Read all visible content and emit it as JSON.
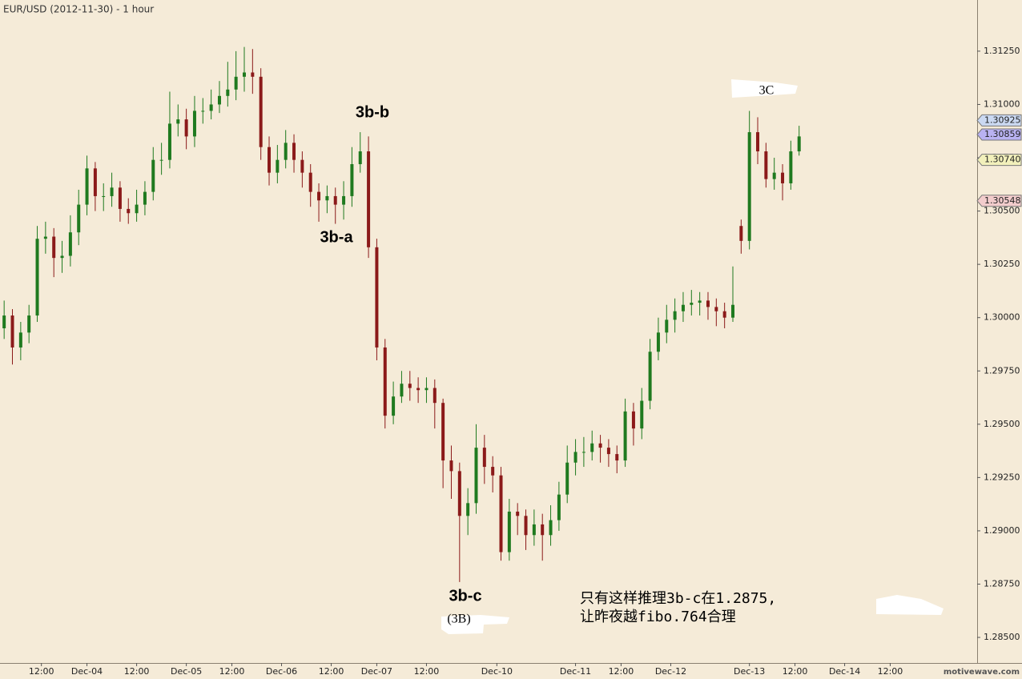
{
  "chart_data": {
    "type": "candlestick",
    "title": "EUR/USD (2012-11-30) - 1 hour",
    "watermark": "motivewave.com",
    "up_color": "#1f7a1f",
    "down_color": "#8b1a1a",
    "x": [
      1,
      3,
      5,
      7,
      9,
      11,
      13,
      15,
      17,
      19,
      21,
      23,
      25,
      27,
      29,
      31,
      33,
      35,
      37,
      39,
      41,
      43,
      45,
      47,
      49,
      51,
      53,
      55,
      57,
      59,
      61,
      63,
      65,
      67,
      69,
      71,
      73,
      75,
      77,
      79,
      81,
      83,
      85,
      87,
      89,
      91,
      93,
      95,
      97,
      99,
      101,
      103,
      105,
      107,
      109,
      111,
      113,
      115,
      117,
      119,
      121,
      123,
      125,
      127,
      129,
      131,
      133,
      135,
      137,
      139,
      141,
      143,
      145,
      147,
      149,
      151,
      153,
      155,
      157,
      159,
      161,
      163,
      165,
      167,
      169,
      171,
      173,
      175,
      177,
      179,
      181,
      183,
      185,
      187,
      189,
      191,
      193
    ],
    "open": [
      1.2995,
      1.3001,
      1.2986,
      1.2993,
      1.3001,
      1.3037,
      1.3038,
      1.3028,
      1.3029,
      1.304,
      1.3053,
      1.307,
      1.3057,
      1.3057,
      1.3061,
      1.3051,
      1.3049,
      1.3053,
      1.3059,
      1.3074,
      1.3074,
      1.3091,
      1.3093,
      1.3085,
      1.3097,
      1.3097,
      1.31,
      1.3104,
      1.3107,
      1.3113,
      1.3115,
      1.3113,
      1.308,
      1.3068,
      1.3074,
      1.3082,
      1.3074,
      1.3068,
      1.3059,
      1.3055,
      1.3057,
      1.3053,
      1.3057,
      1.3072,
      1.3078,
      1.3033,
      1.2986,
      1.2954,
      1.2963,
      1.2969,
      1.2967,
      1.2966,
      1.2967,
      1.296,
      1.2933,
      1.2928,
      1.2907,
      1.2913,
      1.2939,
      1.293,
      1.2926,
      1.289,
      1.2909,
      1.2907,
      1.2898,
      1.2903,
      1.2898,
      1.2905,
      1.2917,
      1.2932,
      1.2937,
      1.2937,
      1.2941,
      1.2939,
      1.2936,
      1.2933,
      1.2956,
      1.2948,
      1.2961,
      1.2984,
      1.2993,
      1.2999,
      1.3003,
      1.3006,
      1.3007,
      1.3008,
      1.3005,
      1.3003,
      1.3,
      1.3043,
      1.3036,
      1.3087,
      1.3078,
      1.3065,
      1.3068,
      1.3063,
      1.3078
    ],
    "high": [
      1.3008,
      1.3004,
      1.2998,
      1.3006,
      1.3043,
      1.3045,
      1.3042,
      1.3036,
      1.3048,
      1.306,
      1.3076,
      1.3073,
      1.3063,
      1.3068,
      1.3064,
      1.3056,
      1.306,
      1.3064,
      1.308,
      1.3082,
      1.3106,
      1.31,
      1.3098,
      1.3104,
      1.3103,
      1.3107,
      1.3111,
      1.312,
      1.3125,
      1.3127,
      1.3126,
      1.3117,
      1.3085,
      1.3081,
      1.3088,
      1.3086,
      1.3078,
      1.3072,
      1.3063,
      1.3062,
      1.3061,
      1.3064,
      1.308,
      1.3087,
      1.3085,
      1.3037,
      1.299,
      1.297,
      1.2975,
      1.2975,
      1.2972,
      1.2972,
      1.2971,
      1.2962,
      1.294,
      1.2932,
      1.292,
      1.295,
      1.2945,
      1.2935,
      1.293,
      1.2915,
      1.2913,
      1.291,
      1.291,
      1.2908,
      1.2912,
      1.2923,
      1.294,
      1.2943,
      1.2944,
      1.2947,
      1.2945,
      1.2943,
      1.294,
      1.2962,
      1.296,
      1.2967,
      1.299,
      1.3,
      1.3006,
      1.3009,
      1.3012,
      1.3013,
      1.3012,
      1.3012,
      1.3009,
      1.3007,
      1.3024,
      1.3046,
      1.3097,
      1.3094,
      1.3082,
      1.3075,
      1.3072,
      1.3083,
      1.309
    ],
    "low": [
      1.299,
      1.2978,
      1.298,
      1.2988,
      1.2998,
      1.303,
      1.3019,
      1.3021,
      1.3024,
      1.3034,
      1.3048,
      1.305,
      1.305,
      1.3052,
      1.3045,
      1.3044,
      1.3045,
      1.3048,
      1.3055,
      1.3067,
      1.307,
      1.3085,
      1.3079,
      1.308,
      1.3091,
      1.3093,
      1.3096,
      1.3099,
      1.3102,
      1.3106,
      1.3105,
      1.3074,
      1.3062,
      1.3063,
      1.307,
      1.3068,
      1.3061,
      1.3052,
      1.3045,
      1.3049,
      1.3044,
      1.3046,
      1.3052,
      1.3068,
      1.3028,
      1.298,
      1.2948,
      1.295,
      1.296,
      1.2961,
      1.296,
      1.296,
      1.2948,
      1.292,
      1.2915,
      1.2876,
      1.2898,
      1.2908,
      1.2922,
      1.2918,
      1.2886,
      1.2886,
      1.2898,
      1.2891,
      1.2893,
      1.2886,
      1.2893,
      1.29,
      1.2913,
      1.2926,
      1.293,
      1.2933,
      1.2932,
      1.293,
      1.2927,
      1.293,
      1.294,
      1.2943,
      1.2957,
      1.298,
      1.2988,
      1.2993,
      1.2998,
      1.3001,
      1.3001,
      1.2999,
      1.2996,
      1.2995,
      1.2998,
      1.303,
      1.3032,
      1.3072,
      1.3061,
      1.306,
      1.3055,
      1.306,
      1.3076
    ],
    "close": [
      1.3001,
      1.2986,
      1.2993,
      1.3001,
      1.3037,
      1.3038,
      1.3028,
      1.3029,
      1.304,
      1.3053,
      1.307,
      1.3057,
      1.3057,
      1.3061,
      1.3051,
      1.3049,
      1.3053,
      1.3059,
      1.3074,
      1.3074,
      1.3091,
      1.3093,
      1.3085,
      1.3097,
      1.3097,
      1.31,
      1.3104,
      1.3107,
      1.3113,
      1.3115,
      1.3113,
      1.308,
      1.3068,
      1.3074,
      1.3082,
      1.3074,
      1.3068,
      1.3059,
      1.3055,
      1.3057,
      1.3053,
      1.3057,
      1.3072,
      1.3078,
      1.3033,
      1.2986,
      1.2954,
      1.2963,
      1.2969,
      1.2967,
      1.2966,
      1.2967,
      1.296,
      1.2933,
      1.2928,
      1.2907,
      1.2913,
      1.2939,
      1.293,
      1.2926,
      1.289,
      1.2909,
      1.2907,
      1.2898,
      1.2903,
      1.2898,
      1.2905,
      1.2917,
      1.2932,
      1.2937,
      1.2937,
      1.2941,
      1.2939,
      1.2936,
      1.2933,
      1.2956,
      1.2948,
      1.2961,
      1.2984,
      1.2993,
      1.2999,
      1.3003,
      1.3006,
      1.3007,
      1.3008,
      1.3005,
      1.3003,
      1.3,
      1.3006,
      1.3036,
      1.3087,
      1.3078,
      1.3065,
      1.3068,
      1.3063,
      1.3078,
      1.3085
    ],
    "xlim": [
      0,
      236
    ],
    "xticks": [
      {
        "value": 10,
        "label": "12:00"
      },
      {
        "value": 21,
        "label": "Dec-04"
      },
      {
        "value": 33,
        "label": "12:00"
      },
      {
        "value": 45,
        "label": "Dec-05"
      },
      {
        "value": 56,
        "label": "12:00"
      },
      {
        "value": 68,
        "label": "Dec-06"
      },
      {
        "value": 80,
        "label": "12:00"
      },
      {
        "value": 91,
        "label": "Dec-07"
      },
      {
        "value": 103,
        "label": "12:00"
      },
      {
        "value": 120,
        "label": "Dec-10"
      },
      {
        "value": 139,
        "label": "Dec-11"
      },
      {
        "value": 150,
        "label": "12:00"
      },
      {
        "value": 162,
        "label": "Dec-12"
      },
      {
        "value": 181,
        "label": "Dec-13"
      },
      {
        "value": 192,
        "label": "12:00"
      },
      {
        "value": 204,
        "label": "Dec-14"
      },
      {
        "value": 215,
        "label": "12:00"
      }
    ],
    "ylim": [
      1.2838,
      1.3149
    ],
    "yticks": [
      {
        "value": 1.285,
        "label": "1.28500"
      },
      {
        "value": 1.2875,
        "label": "1.28750"
      },
      {
        "value": 1.29,
        "label": "1.29000"
      },
      {
        "value": 1.2925,
        "label": "1.29250"
      },
      {
        "value": 1.295,
        "label": "1.29500"
      },
      {
        "value": 1.2975,
        "label": "1.29750"
      },
      {
        "value": 1.3,
        "label": "1.30000"
      },
      {
        "value": 1.3025,
        "label": "1.30250"
      },
      {
        "value": 1.305,
        "label": "1.30500"
      },
      {
        "value": 1.3075,
        "label": "1.30750"
      },
      {
        "value": 1.31,
        "label": "1.31000"
      },
      {
        "value": 1.3125,
        "label": "1.31250"
      }
    ],
    "price_tags": [
      {
        "value": 1.30925,
        "label": "1.30925",
        "color": "#cbd9f2"
      },
      {
        "value": 1.30859,
        "label": "1.30859",
        "color": "#b9b2f2"
      },
      {
        "value": 1.3074,
        "label": "1.30740",
        "color": "#f2f0bb"
      },
      {
        "value": 1.30548,
        "label": "1.30548",
        "color": "#f2cccc"
      }
    ],
    "annotations": [
      "3b-b",
      "3b-a",
      "3b-c",
      "(3B)",
      "3C",
      "只有这样推理3b-c在1.2875,",
      "让昨夜越fibo.764合理"
    ]
  }
}
